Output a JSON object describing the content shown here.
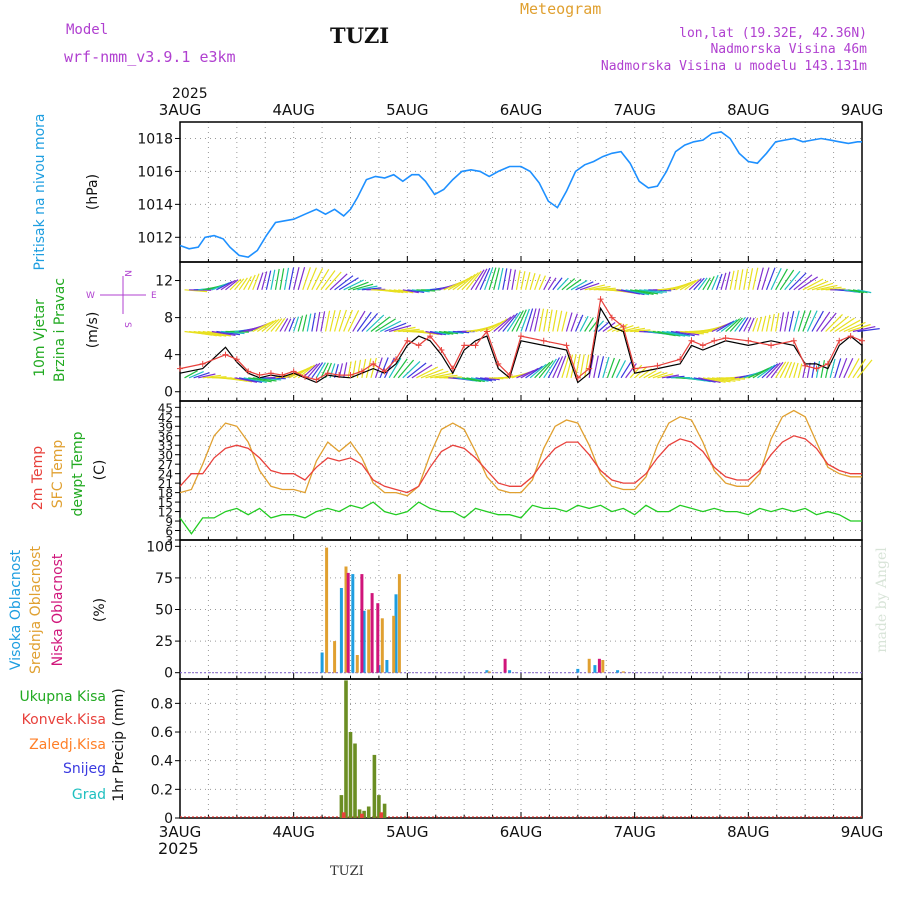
{
  "header": {
    "model_label": "Model",
    "model_name": "wrf-nmm_v3.9.1 e3km",
    "station": "TUZI",
    "product": "Meteogram",
    "coords": "lon,lat (19.32E, 42.36N)",
    "elevation": "Nadmorska Visina 46m",
    "model_elevation": "Nadmorska Visina u modelu 143.131m",
    "footer_station": "TUZI",
    "credit": "made by Angel"
  },
  "time_axis": {
    "year": "2025",
    "labels": [
      "3AUG",
      "4AUG",
      "5AUG",
      "6AUG",
      "7AUG",
      "8AUG",
      "9AUG"
    ],
    "range_days": [
      0,
      6
    ]
  },
  "colors": {
    "pressure": "#1e90ff",
    "temp2m": "#e8413c",
    "sfc_temp": "#e0a030",
    "dewpoint": "#22cc22",
    "high_cloud": "#1e9ee0",
    "mid_cloud": "#e0a030",
    "low_cloud": "#d0157a",
    "total_precip": "#6b8e23",
    "convective": "#e8413c",
    "frozen": "#ff7f27",
    "snow": "#3a3ae0",
    "graupel": "#20c0c0",
    "wind_black": "#000000",
    "wind_red": "#e8413c"
  },
  "chart_data": [
    {
      "type": "line",
      "panel": "pressure",
      "ylabel_left": "Pritisak na nivou mora",
      "unit": "(hPa)",
      "ylim": [
        1010.5,
        1019.0
      ],
      "yticks": [
        1012,
        1014,
        1016,
        1018
      ],
      "series": [
        {
          "name": "MSLP",
          "x": [
            0,
            0.08,
            0.16,
            0.22,
            0.3,
            0.38,
            0.44,
            0.52,
            0.6,
            0.68,
            0.76,
            0.84,
            0.92,
            1.0,
            1.1,
            1.2,
            1.28,
            1.36,
            1.44,
            1.5,
            1.56,
            1.64,
            1.72,
            1.8,
            1.88,
            1.96,
            2.04,
            2.1,
            2.16,
            2.24,
            2.32,
            2.4,
            2.48,
            2.56,
            2.64,
            2.72,
            2.8,
            2.9,
            3.0,
            3.08,
            3.16,
            3.24,
            3.32,
            3.4,
            3.48,
            3.56,
            3.64,
            3.72,
            3.8,
            3.88,
            3.96,
            4.04,
            4.12,
            4.2,
            4.28,
            4.36,
            4.44,
            4.52,
            4.6,
            4.68,
            4.76,
            4.84,
            4.92,
            5.0,
            5.08,
            5.16,
            5.24,
            5.32,
            5.4,
            5.48,
            5.56,
            5.64,
            5.72,
            5.8,
            5.88,
            5.96,
            6.0
          ],
          "values": [
            1011.5,
            1011.3,
            1011.4,
            1012.0,
            1012.1,
            1011.9,
            1011.4,
            1010.9,
            1010.8,
            1011.2,
            1012.1,
            1012.9,
            1013.0,
            1013.1,
            1013.4,
            1013.7,
            1013.4,
            1013.7,
            1013.3,
            1013.7,
            1014.4,
            1015.5,
            1015.7,
            1015.6,
            1015.8,
            1015.4,
            1015.8,
            1015.8,
            1015.4,
            1014.6,
            1014.9,
            1015.5,
            1016.0,
            1016.1,
            1016.0,
            1015.7,
            1016.0,
            1016.3,
            1016.3,
            1016.0,
            1015.3,
            1014.2,
            1013.8,
            1014.8,
            1016.0,
            1016.4,
            1016.6,
            1016.9,
            1017.1,
            1017.2,
            1016.5,
            1015.4,
            1015.0,
            1015.1,
            1016.0,
            1017.2,
            1017.6,
            1017.8,
            1017.9,
            1018.3,
            1018.4,
            1018.0,
            1017.1,
            1016.6,
            1016.5,
            1017.1,
            1017.8,
            1017.9,
            1018.0,
            1017.8,
            1017.9,
            1018.0,
            1017.9,
            1017.8,
            1017.7,
            1017.8,
            1017.8
          ]
        }
      ]
    },
    {
      "type": "line",
      "panel": "wind",
      "ylabel_left_1": "10m Vjetar",
      "ylabel_left_2": "Brzina i Pravac",
      "unit": "(m/s)",
      "compass": {
        "n": "N",
        "s": "S",
        "e": "E",
        "w": "W"
      },
      "ylim": [
        -1,
        14
      ],
      "yticks": [
        0,
        4,
        8,
        12
      ],
      "series": [
        {
          "name": "Wind speed",
          "x": [
            0,
            0.2,
            0.4,
            0.5,
            0.6,
            0.7,
            0.8,
            0.9,
            1.0,
            1.1,
            1.2,
            1.3,
            1.4,
            1.5,
            1.6,
            1.7,
            1.8,
            1.9,
            2.0,
            2.1,
            2.2,
            2.3,
            2.4,
            2.5,
            2.6,
            2.7,
            2.8,
            2.9,
            3.0,
            3.2,
            3.4,
            3.5,
            3.6,
            3.7,
            3.8,
            3.9,
            4.0,
            4.2,
            4.4,
            4.5,
            4.6,
            4.7,
            4.8,
            5.0,
            5.2,
            5.4,
            5.5,
            5.6,
            5.7,
            5.8,
            5.9,
            6.0
          ],
          "values": [
            2.0,
            2.5,
            4.8,
            3.2,
            2.0,
            1.5,
            1.8,
            1.6,
            2.0,
            1.5,
            1.0,
            1.8,
            1.6,
            1.5,
            2.0,
            2.5,
            2.0,
            3.0,
            5.0,
            6.0,
            5.5,
            4.0,
            2.0,
            4.5,
            5.5,
            6.0,
            2.5,
            1.5,
            5.5,
            5.0,
            4.5,
            1.0,
            2.0,
            9.0,
            7.0,
            6.5,
            2.0,
            2.5,
            3.0,
            5.0,
            4.5,
            5.0,
            5.5,
            5.0,
            5.5,
            5.0,
            3.0,
            3.0,
            2.5,
            5.0,
            6.0,
            5.0
          ]
        },
        {
          "name": "Wind gust",
          "x": [
            0,
            0.2,
            0.4,
            0.5,
            0.6,
            0.7,
            0.8,
            0.9,
            1.0,
            1.1,
            1.2,
            1.3,
            1.4,
            1.5,
            1.6,
            1.7,
            1.8,
            1.9,
            2.0,
            2.1,
            2.2,
            2.3,
            2.4,
            2.5,
            2.6,
            2.7,
            2.8,
            2.9,
            3.0,
            3.2,
            3.4,
            3.5,
            3.6,
            3.7,
            3.8,
            3.9,
            4.0,
            4.2,
            4.4,
            4.5,
            4.6,
            4.7,
            4.8,
            5.0,
            5.2,
            5.4,
            5.5,
            5.6,
            5.7,
            5.8,
            5.9,
            6.0
          ],
          "values": [
            2.5,
            3.0,
            4.0,
            3.5,
            2.2,
            1.8,
            2.0,
            1.8,
            2.2,
            1.6,
            1.3,
            2.0,
            1.8,
            1.8,
            2.2,
            3.0,
            2.2,
            3.5,
            5.5,
            5.0,
            6.0,
            4.5,
            2.5,
            5.0,
            5.0,
            6.5,
            3.0,
            1.8,
            6.0,
            5.5,
            5.0,
            1.5,
            2.5,
            10.0,
            8.0,
            7.0,
            2.5,
            2.8,
            3.5,
            5.5,
            5.0,
            5.5,
            5.8,
            5.5,
            5.0,
            5.5,
            2.8,
            2.5,
            3.0,
            5.5,
            6.0,
            5.5
          ]
        }
      ],
      "barb_levels": [
        {
          "level": 1.5,
          "color": "#1e9ee0"
        },
        {
          "level": 6.5,
          "color": "#20c0c0"
        },
        {
          "level": 11.0,
          "color": "#3a3ae0"
        }
      ]
    },
    {
      "type": "line",
      "panel": "temperature",
      "ylabel_left_1": "2m Temp",
      "ylabel_left_2": "SFC Temp",
      "ylabel_left_3": "dewpt Temp",
      "unit": "(C)",
      "ylim": [
        3,
        47
      ],
      "yticks": [
        3,
        6,
        9,
        12,
        15,
        18,
        21,
        24,
        27,
        30,
        33,
        36,
        39,
        42,
        45
      ],
      "series": [
        {
          "name": "2m Temp",
          "x": [
            0,
            0.1,
            0.2,
            0.3,
            0.4,
            0.5,
            0.6,
            0.7,
            0.8,
            0.9,
            1.0,
            1.1,
            1.2,
            1.3,
            1.4,
            1.5,
            1.6,
            1.7,
            1.8,
            1.9,
            2.0,
            2.1,
            2.2,
            2.3,
            2.4,
            2.5,
            2.6,
            2.7,
            2.8,
            2.9,
            3.0,
            3.1,
            3.2,
            3.3,
            3.4,
            3.5,
            3.6,
            3.7,
            3.8,
            3.9,
            4.0,
            4.1,
            4.2,
            4.3,
            4.4,
            4.5,
            4.6,
            4.7,
            4.8,
            4.9,
            5.0,
            5.1,
            5.2,
            5.3,
            5.4,
            5.5,
            5.6,
            5.7,
            5.8,
            5.9,
            6.0
          ],
          "values": [
            20,
            24,
            24,
            29,
            32,
            33,
            32,
            29,
            25,
            24,
            24,
            22,
            26,
            29,
            28,
            29,
            27,
            22,
            20,
            19,
            18,
            20,
            26,
            31,
            33,
            32,
            29,
            25,
            21,
            20,
            20,
            23,
            28,
            32,
            34,
            34,
            30,
            25,
            22,
            21,
            21,
            24,
            29,
            33,
            35,
            34,
            31,
            26,
            23,
            22,
            22,
            25,
            30,
            34,
            36,
            35,
            32,
            27,
            25,
            24,
            24
          ]
        },
        {
          "name": "SFC Temp",
          "x": [
            0,
            0.1,
            0.2,
            0.3,
            0.4,
            0.5,
            0.6,
            0.7,
            0.8,
            0.9,
            1.0,
            1.1,
            1.2,
            1.3,
            1.4,
            1.5,
            1.6,
            1.7,
            1.8,
            1.9,
            2.0,
            2.1,
            2.2,
            2.3,
            2.4,
            2.5,
            2.6,
            2.7,
            2.8,
            2.9,
            3.0,
            3.1,
            3.2,
            3.3,
            3.4,
            3.5,
            3.6,
            3.7,
            3.8,
            3.9,
            4.0,
            4.1,
            4.2,
            4.3,
            4.4,
            4.5,
            4.6,
            4.7,
            4.8,
            4.9,
            5.0,
            5.1,
            5.2,
            5.3,
            5.4,
            5.5,
            5.6,
            5.7,
            5.8,
            5.9,
            6.0
          ],
          "values": [
            18,
            19,
            27,
            36,
            40,
            39,
            34,
            25,
            20,
            19,
            19,
            18,
            28,
            34,
            31,
            34,
            29,
            21,
            18,
            18,
            17,
            20,
            30,
            38,
            40,
            38,
            31,
            23,
            19,
            18,
            18,
            22,
            32,
            39,
            41,
            40,
            33,
            24,
            20,
            19,
            19,
            23,
            33,
            40,
            42,
            41,
            34,
            25,
            21,
            20,
            20,
            24,
            35,
            42,
            44,
            42,
            34,
            26,
            24,
            23,
            23
          ]
        },
        {
          "name": "Dewpoint",
          "x": [
            0,
            0.1,
            0.2,
            0.3,
            0.4,
            0.5,
            0.6,
            0.7,
            0.8,
            0.9,
            1.0,
            1.1,
            1.2,
            1.3,
            1.4,
            1.5,
            1.6,
            1.7,
            1.8,
            1.9,
            2.0,
            2.1,
            2.2,
            2.3,
            2.4,
            2.5,
            2.6,
            2.7,
            2.8,
            2.9,
            3.0,
            3.1,
            3.2,
            3.3,
            3.4,
            3.5,
            3.6,
            3.7,
            3.8,
            3.9,
            4.0,
            4.1,
            4.2,
            4.3,
            4.4,
            4.5,
            4.6,
            4.7,
            4.8,
            4.9,
            5.0,
            5.1,
            5.2,
            5.3,
            5.4,
            5.5,
            5.6,
            5.7,
            5.8,
            5.9,
            6.0
          ],
          "values": [
            10,
            5,
            10,
            10,
            12,
            13,
            11,
            13,
            10,
            11,
            11,
            10,
            12,
            13,
            12,
            14,
            13,
            15,
            12,
            11,
            12,
            15,
            13,
            12,
            12,
            10,
            13,
            12,
            11,
            11,
            10,
            14,
            13,
            13,
            12,
            14,
            13,
            14,
            12,
            13,
            11,
            14,
            12,
            12,
            14,
            13,
            12,
            13,
            12,
            12,
            11,
            13,
            12,
            13,
            12,
            13,
            11,
            12,
            11,
            9,
            9
          ]
        }
      ]
    },
    {
      "type": "bar",
      "panel": "cloud",
      "ylabel_left_1": "Visoka Oblacnost",
      "ylabel_left_2": "Srednja Oblacnost",
      "ylabel_left_3": "Niska Oblacnost",
      "unit": "(%)",
      "ylim": [
        -5,
        105
      ],
      "yticks": [
        0,
        25,
        50,
        75,
        100
      ],
      "series": [
        {
          "name": "Visoka Oblacnost",
          "x": [
            1.25,
            1.42,
            1.52,
            1.62,
            1.75,
            1.82,
            1.9,
            2.7,
            2.9,
            3.5,
            3.65,
            3.85
          ],
          "values": [
            16,
            67,
            78,
            49,
            6,
            10,
            62,
            2,
            2,
            3,
            6,
            2
          ]
        },
        {
          "name": "Srednja Oblacnost",
          "x": [
            1.29,
            1.36,
            1.46,
            1.56,
            1.66,
            1.78,
            1.88,
            1.93,
            2.72,
            3.6,
            3.72,
            3.9
          ],
          "values": [
            99,
            25,
            84,
            14,
            50,
            43,
            45,
            78,
            1,
            11,
            10,
            1
          ]
        },
        {
          "name": "Niska Oblacnost",
          "x": [
            1.48,
            1.6,
            1.69,
            1.74,
            2.86,
            3.69
          ],
          "values": [
            79,
            78,
            63,
            55,
            11,
            11
          ]
        }
      ]
    },
    {
      "type": "bar",
      "panel": "precip",
      "legend_1": "Ukupna Kisa",
      "legend_2": "Konvek.Kisa",
      "legend_3": "Zaledj.Kisa",
      "legend_4": "Snijeg",
      "legend_5": "Grad",
      "ylabel": "1hr Precip (mm)",
      "ylim": [
        0,
        0.97
      ],
      "yticks": [
        0,
        0.2,
        0.4,
        0.6,
        0.8
      ],
      "series": [
        {
          "name": "Ukupna Kisa",
          "x": [
            1.42,
            1.46,
            1.5,
            1.54,
            1.58,
            1.62,
            1.66,
            1.71,
            1.75,
            1.8
          ],
          "values": [
            0.16,
            0.96,
            0.6,
            0.52,
            0.06,
            0.05,
            0.08,
            0.44,
            0.16,
            0.1
          ]
        },
        {
          "name": "Konvek.Kisa",
          "x": [
            1.44,
            1.6,
            1.77
          ],
          "values": [
            0.04,
            0.03,
            0.04
          ]
        }
      ]
    }
  ]
}
